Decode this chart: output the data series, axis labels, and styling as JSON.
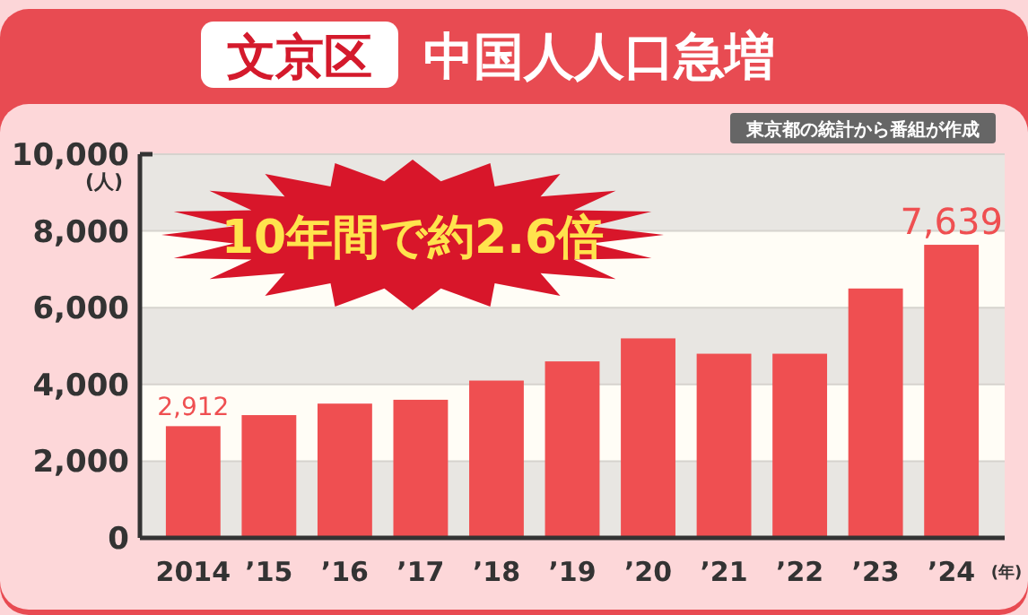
{
  "chart_data": {
    "type": "bar",
    "title": "文京区",
    "subtitle": "中国人人口急増",
    "ylabel": "(人)",
    "xlabel": "(年)",
    "categories": [
      "2014",
      "’15",
      "’16",
      "’17",
      "’18",
      "’19",
      "’20",
      "’21",
      "’22",
      "’23",
      "’24"
    ],
    "values": [
      2912,
      3200,
      3500,
      3600,
      4100,
      4600,
      5200,
      4800,
      4800,
      6500,
      7639
    ],
    "value_labels": [
      "2,912",
      null,
      null,
      null,
      null,
      null,
      null,
      null,
      null,
      null,
      "7,639"
    ],
    "color": "#ef4f51",
    "ylim": [
      0,
      10000
    ],
    "yticks": [
      {
        "value": 0,
        "label": "0"
      },
      {
        "value": 2000,
        "label": "2,000"
      },
      {
        "value": 4000,
        "label": "4,000"
      },
      {
        "value": 6000,
        "label": "6,000"
      },
      {
        "value": 8000,
        "label": "8,000"
      },
      {
        "value": 10000,
        "label": "10,000"
      }
    ],
    "grid": "y",
    "annotations": [
      "東京都の統計から番組が作成",
      "10年間で約2.6倍"
    ]
  }
}
